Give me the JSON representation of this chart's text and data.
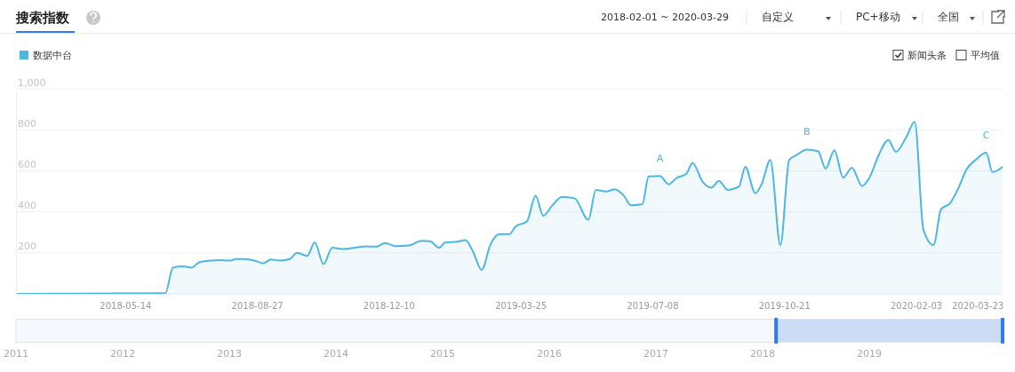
{
  "chart_data": {
    "type": "area",
    "title": "搜索指数",
    "legend": "top left",
    "grid": "y",
    "xlim": [
      "2018-02-16",
      "2020-04-12"
    ],
    "xticks": [
      "2018-05-14",
      "2018-08-27",
      "2018-12-10",
      "2019-03-25",
      "2019-07-08",
      "2019-10-21",
      "2020-02-03",
      "2020-03-23"
    ],
    "ylim": [
      0,
      1000
    ],
    "yticks": [
      200,
      400,
      600,
      800,
      {
        "value": 1000,
        "label": "1,000"
      }
    ],
    "x": [
      "2018-02-16",
      "2018-06-15",
      "2018-06-21",
      "2018-06-29",
      "2018-07-06",
      "2018-07-12",
      "2018-07-21",
      "2018-07-27",
      "2018-08-06",
      "2018-08-10",
      "2018-08-17",
      "2018-08-25",
      "2018-09-01",
      "2018-09-07",
      "2018-09-14",
      "2018-09-22",
      "2018-09-28",
      "2018-10-06",
      "2018-10-12",
      "2018-10-19",
      "2018-10-26",
      "2018-11-03",
      "2018-11-13",
      "2018-11-22",
      "2018-11-30",
      "2018-12-07",
      "2018-12-15",
      "2018-12-26",
      "2019-01-05",
      "2019-01-12",
      "2019-01-19",
      "2019-01-24",
      "2019-02-02",
      "2019-02-09",
      "2019-02-15",
      "2019-02-22",
      "2019-03-01",
      "2019-03-08",
      "2019-03-16",
      "2019-03-21",
      "2019-03-30",
      "2019-04-06",
      "2019-04-12",
      "2019-04-19",
      "2019-04-27",
      "2019-05-07",
      "2019-05-18",
      "2019-05-24",
      "2019-06-01",
      "2019-06-08",
      "2019-06-15",
      "2019-06-21",
      "2019-06-30",
      "2019-07-05",
      "2019-07-14",
      "2019-07-21",
      "2019-07-27",
      "2019-08-04",
      "2019-08-09",
      "2019-08-17",
      "2019-08-24",
      "2019-08-30",
      "2019-09-06",
      "2019-09-15",
      "2019-09-20",
      "2019-09-28",
      "2019-10-03",
      "2019-10-10",
      "2019-10-18",
      "2019-10-25",
      "2019-10-31",
      "2019-11-08",
      "2019-11-17",
      "2019-11-23",
      "2019-11-30",
      "2019-12-07",
      "2019-12-14",
      "2019-12-22",
      "2019-12-28",
      "2020-01-04",
      "2020-01-12",
      "2020-01-18",
      "2020-01-26",
      "2020-02-02",
      "2020-02-09",
      "2020-02-17",
      "2020-02-23",
      "2020-03-01",
      "2020-03-08",
      "2020-03-14",
      "2020-03-22",
      "2020-03-30",
      "2020-04-04",
      "2020-04-12"
    ],
    "series": [
      {
        "name": "数据中台",
        "color": "#4cb6e4",
        "values": [
          0,
          3,
          128,
          134,
          128,
          154,
          162,
          165,
          162,
          170,
          170,
          162,
          149,
          168,
          162,
          170,
          200,
          185,
          251,
          146,
          225,
          219,
          225,
          232,
          230,
          248,
          233,
          236,
          259,
          256,
          225,
          251,
          254,
          262,
          208,
          117,
          241,
          291,
          291,
          328,
          353,
          478,
          381,
          429,
          473,
          466,
          361,
          507,
          499,
          510,
          481,
          432,
          437,
          572,
          575,
          534,
          564,
          585,
          638,
          547,
          518,
          551,
          507,
          523,
          619,
          491,
          534,
          653,
          238,
          653,
          677,
          704,
          696,
          611,
          700,
          567,
          615,
          526,
          567,
          672,
          750,
          693,
          761,
          839,
          311,
          238,
          413,
          441,
          518,
          604,
          656,
          688,
          594,
          619
        ]
      }
    ],
    "annotations": [
      "2018-02-01 ~ 2020-03-29",
      "自定义",
      "PC+移动",
      "全国",
      "新闻头条",
      "平均值",
      "2011",
      "2012",
      "2013",
      "2014",
      "2015",
      "2016",
      "2017",
      "2018",
      "2019",
      {
        "text": "A",
        "x": "2019-07-14",
        "y": 575
      },
      {
        "text": "B",
        "x": "2019-11-08",
        "y": 704
      },
      {
        "text": "C",
        "x": "2020-03-30",
        "y": 688
      }
    ]
  }
}
